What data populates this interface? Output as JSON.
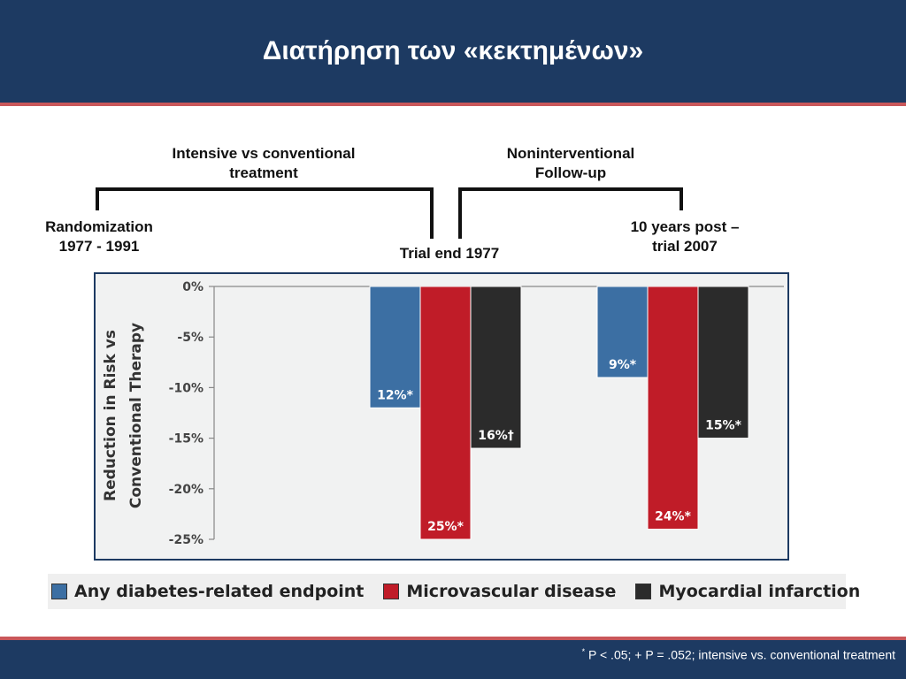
{
  "slide": {
    "title": "Διατήρηση των «κεκτημένων»"
  },
  "timeline": {
    "period1_line1": "Intensive vs conventional",
    "period1_line2": "treatment",
    "period2_line1": "Noninterventional",
    "period2_line2": "Follow-up",
    "start_line1": "Randomization",
    "start_line2": "1977 - 1991",
    "middle": "Trial end 1977",
    "end_line1": "10 years post –",
    "end_line2": "trial 2007"
  },
  "chart_data": {
    "type": "bar",
    "ylabel_line1": "Reduction in Risk vs",
    "ylabel_line2": "Conventional Therapy",
    "ylim": [
      -25,
      0
    ],
    "yticks": [
      0,
      -5,
      -10,
      -15,
      -20,
      -25
    ],
    "ytick_labels": [
      "0%",
      "-5%",
      "-10%",
      "-15%",
      "-20%",
      "-25%"
    ],
    "categories": [
      "",
      ""
    ],
    "series": [
      {
        "name": "Any diabetes-related endpoint",
        "color": "#3c6fa3",
        "values": [
          -12,
          -9
        ],
        "labels": [
          "12%*",
          "9%*"
        ]
      },
      {
        "name": "Microvascular disease",
        "color": "#c01c28",
        "values": [
          -25,
          -24
        ],
        "labels": [
          "25%*",
          "24%*"
        ]
      },
      {
        "name": "Myocardial infarction",
        "color": "#2b2b2b",
        "values": [
          -16,
          -15
        ],
        "labels": [
          "16%†",
          "15%*"
        ]
      }
    ],
    "legend_position": "bottom",
    "grid": false
  },
  "footnote": {
    "marker": "*",
    "text": " P < .05; + P = .052; intensive vs. conventional treatment"
  }
}
